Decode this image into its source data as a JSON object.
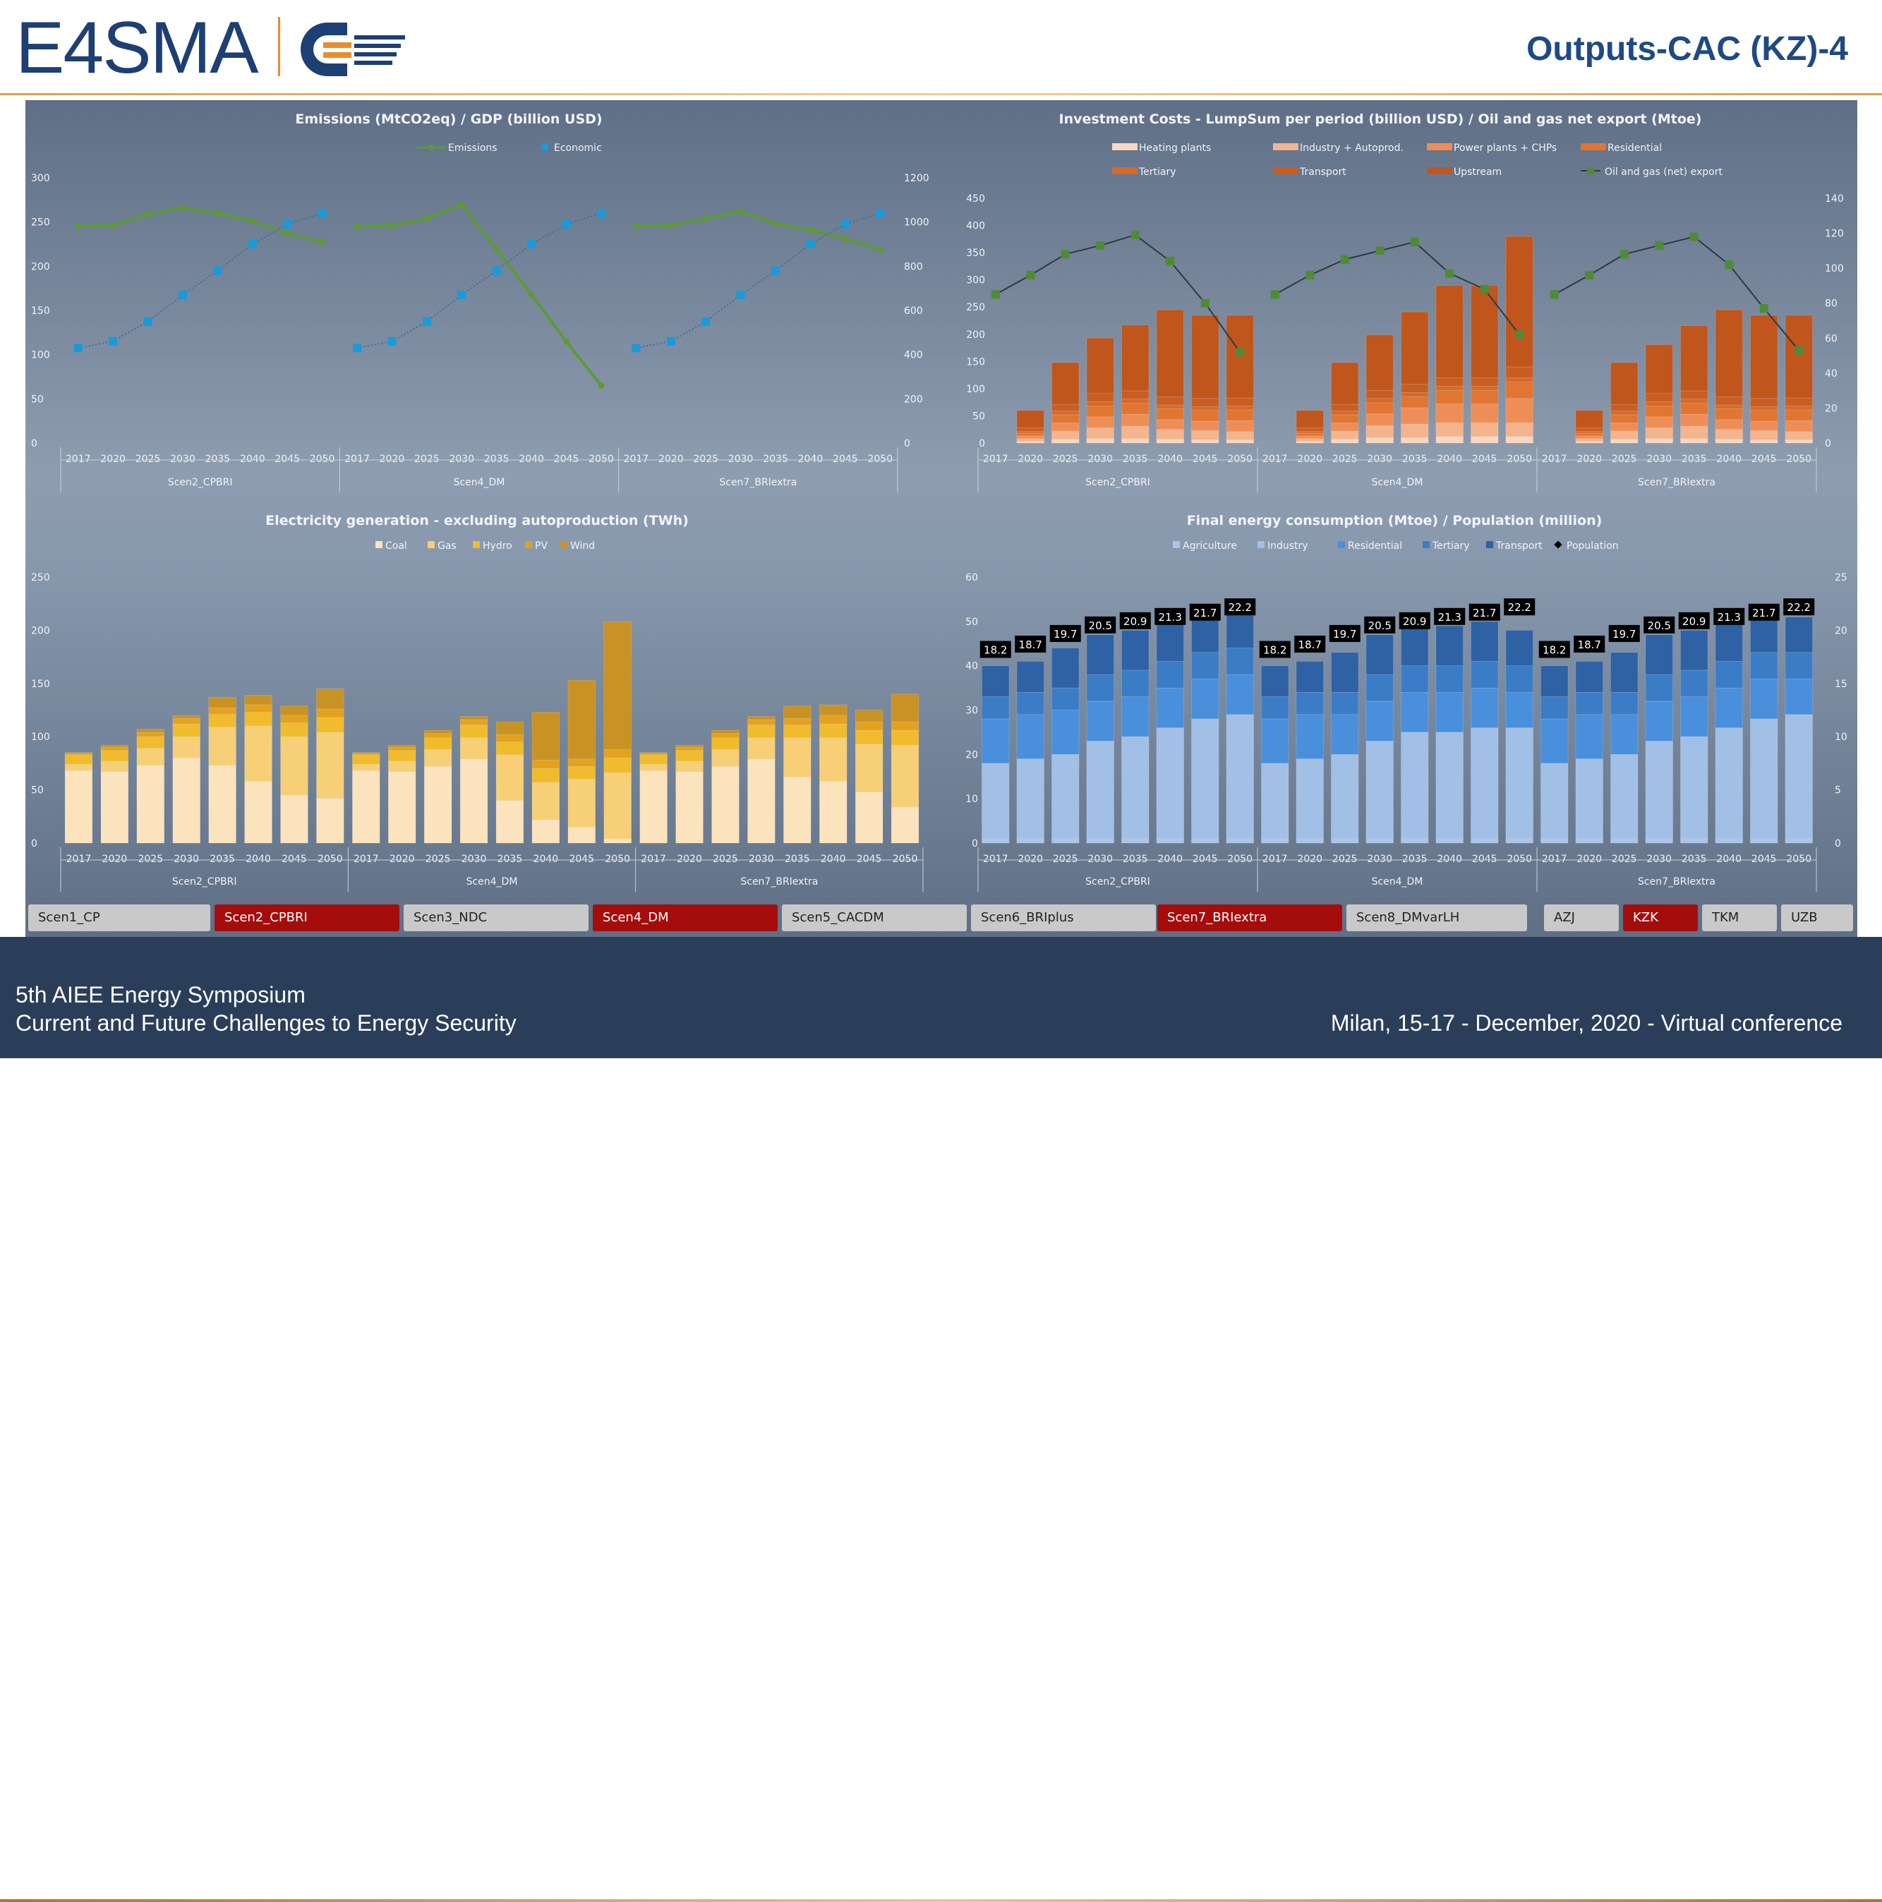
{
  "header": {
    "logo_text": "E4SMA",
    "title": "Outputs-CAC (KZ)-4"
  },
  "footer": {
    "line1": "5th AIEE Energy Symposium",
    "line2": "Current and Future Challenges to Energy Security",
    "right": "Milan, 15-17 - December, 2020 - Virtual conference"
  },
  "tabs": [
    {
      "label": "Scen1_CP",
      "active": false
    },
    {
      "label": "Scen2_CPBRI",
      "active": true
    },
    {
      "label": "Scen3_NDC",
      "active": false
    },
    {
      "label": "Scen4_DM",
      "active": true
    },
    {
      "label": "Scen5_CACDM",
      "active": false
    },
    {
      "label": "Scen6_BRIplus",
      "active": false
    },
    {
      "label": "Scen7_BRIextra",
      "active": true
    },
    {
      "label": "Scen8_DMvarLH",
      "active": false
    },
    {
      "label": "AZJ",
      "active": false
    },
    {
      "label": "KZK",
      "active": true
    },
    {
      "label": "TKM",
      "active": false
    },
    {
      "label": "UZB",
      "active": false
    }
  ],
  "colors": {
    "tab_active": "#a50d0d",
    "tab_inactive": "#c9c9c9",
    "emissions": "#5d9a35",
    "economic": "#1a9ad8",
    "oilgas": "#4f8a35"
  },
  "chart_data": [
    {
      "type": "line",
      "title": "Emissions (MtCO2eq) / GDP (billion USD)",
      "groups": [
        "Scen2_CPBRI",
        "Scen4_DM",
        "Scen7_BRIextra"
      ],
      "years": [
        "2017",
        "2020",
        "2025",
        "2030",
        "2035",
        "2040",
        "2045",
        "2050"
      ],
      "y_left": {
        "ticks": [
          "0",
          "50",
          "100",
          "150",
          "200",
          "250",
          "300"
        ],
        "min": 0,
        "max": 300
      },
      "y_right": {
        "ticks": [
          "0",
          "200",
          "400",
          "600",
          "800",
          "1000",
          "1200"
        ],
        "min": 0,
        "max": 1200
      },
      "legend_position": "top",
      "series": [
        {
          "name": "Emissions",
          "axis": "left",
          "color": "#5d9a35",
          "values": [
            [
              245,
              246,
              259,
              266,
              260,
              251,
              237,
              227
            ],
            [
              245,
              246,
              254,
              270,
              219,
              168,
              115,
              65
            ],
            [
              245,
              246,
              254,
              262,
              248,
              241,
              231,
              219
            ]
          ]
        },
        {
          "name": "Economic",
          "axis": "right",
          "color": "#1a9ad8",
          "values": [
            [
              430,
              460,
              550,
              670,
              780,
              900,
              990,
              1040
            ],
            [
              430,
              460,
              550,
              670,
              780,
              900,
              990,
              1040
            ],
            [
              430,
              460,
              550,
              670,
              780,
              900,
              990,
              1040
            ]
          ]
        }
      ]
    },
    {
      "type": "bar",
      "stacked": true,
      "title": "Investment Costs - LumpSum per period (billion USD) / Oil and gas net export (Mtoe)",
      "groups": [
        "Scen2_CPBRI",
        "Scen4_DM",
        "Scen7_BRIextra"
      ],
      "years": [
        "2017",
        "2020",
        "2025",
        "2030",
        "2035",
        "2040",
        "2045",
        "2050"
      ],
      "y_left": {
        "ticks": [
          "0",
          "50",
          "100",
          "150",
          "200",
          "250",
          "300",
          "350",
          "400",
          "450"
        ],
        "min": 0,
        "max": 450
      },
      "y_right": {
        "ticks": [
          "0",
          "20",
          "40",
          "60",
          "80",
          "100",
          "120",
          "140"
        ],
        "min": 0,
        "max": 140
      },
      "legend_position": "top",
      "series": [
        {
          "name": "Heating plants",
          "color": "#f8d8c0",
          "values": [
            [
              0,
              3,
              7,
              8,
              8,
              7,
              6,
              6
            ],
            [
              0,
              3,
              7,
              10,
              10,
              12,
              12,
              12
            ],
            [
              0,
              3,
              7,
              8,
              8,
              7,
              6,
              6
            ]
          ]
        },
        {
          "name": "Industry + Autoprod.",
          "color": "#f3b48e",
          "values": [
            [
              0,
              5,
              15,
              20,
              23,
              18,
              17,
              15
            ],
            [
              0,
              5,
              15,
              22,
              25,
              25,
              25,
              25
            ],
            [
              0,
              5,
              15,
              20,
              23,
              18,
              17,
              15
            ]
          ]
        },
        {
          "name": "Power plants + CHPs",
          "color": "#ee8e56",
          "values": [
            [
              0,
              5,
              15,
              20,
              22,
              18,
              17,
              20
            ],
            [
              0,
              5,
              15,
              22,
              30,
              35,
              35,
              45
            ],
            [
              0,
              5,
              15,
              20,
              22,
              18,
              17,
              20
            ]
          ]
        },
        {
          "name": "Residential",
          "color": "#e07632",
          "values": [
            [
              0,
              5,
              15,
              20,
              20,
              20,
              20,
              20
            ],
            [
              0,
              5,
              15,
              20,
              20,
              25,
              25,
              30
            ],
            [
              0,
              5,
              15,
              20,
              20,
              20,
              20,
              20
            ]
          ]
        },
        {
          "name": "Tertiary",
          "color": "#d46a2b",
          "values": [
            [
              0,
              3,
              7,
              8,
              8,
              7,
              7,
              7
            ],
            [
              0,
              3,
              7,
              8,
              8,
              8,
              8,
              8
            ],
            [
              0,
              3,
              7,
              8,
              8,
              7,
              7,
              7
            ]
          ]
        },
        {
          "name": "Transport",
          "color": "#c95e22",
          "values": [
            [
              0,
              7,
              12,
              15,
              15,
              15,
              15,
              15
            ],
            [
              0,
              7,
              12,
              15,
              15,
              15,
              15,
              20
            ],
            [
              0,
              7,
              12,
              15,
              15,
              15,
              15,
              15
            ]
          ]
        },
        {
          "name": "Upstream",
          "color": "#c0561c",
          "values": [
            [
              0,
              32,
              77,
              102,
              121,
              160,
              153,
              152
            ],
            [
              0,
              32,
              77,
              102,
              133,
              170,
              170,
              240
            ],
            [
              0,
              32,
              77,
              90,
              120,
              160,
              153,
              152
            ]
          ]
        }
      ],
      "line": {
        "name": "Oil and gas (net) export",
        "axis": "right",
        "color": "#4f8a35",
        "values": [
          [
            85,
            96,
            108,
            113,
            119,
            104,
            80,
            52
          ],
          [
            85,
            96,
            105,
            110,
            115,
            97,
            88,
            62
          ],
          [
            85,
            96,
            108,
            113,
            118,
            102,
            77,
            53
          ]
        ]
      }
    },
    {
      "type": "bar",
      "stacked": true,
      "title": "Electricity generation -  excluding autoproduction (TWh)",
      "groups": [
        "Scen2_CPBRI",
        "Scen4_DM",
        "Scen7_BRIextra"
      ],
      "years": [
        "2017",
        "2020",
        "2025",
        "2030",
        "2035",
        "2040",
        "2045",
        "2050"
      ],
      "y_left": {
        "ticks": [
          "0",
          "50",
          "100",
          "150",
          "200",
          "250"
        ],
        "min": 0,
        "max": 250
      },
      "legend_position": "top",
      "series": [
        {
          "name": "Coal",
          "color": "#fae3bd",
          "values": [
            [
              68,
              67,
              73,
              80,
              73,
              58,
              45,
              42
            ],
            [
              68,
              67,
              72,
              79,
              40,
              22,
              15,
              4
            ],
            [
              68,
              67,
              72,
              79,
              62,
              58,
              48,
              34
            ]
          ]
        },
        {
          "name": "Gas",
          "color": "#f6cf77",
          "values": [
            [
              6,
              10,
              16,
              20,
              36,
              52,
              55,
              62
            ],
            [
              6,
              10,
              16,
              20,
              43,
              35,
              45,
              62
            ],
            [
              6,
              10,
              16,
              20,
              37,
              41,
              45,
              58
            ]
          ]
        },
        {
          "name": "Hydro",
          "color": "#f1bb2e",
          "values": [
            [
              9,
              10,
              11,
              12,
              12,
              13,
              13,
              14
            ],
            [
              9,
              10,
              11,
              12,
              12,
              13,
              12,
              14
            ],
            [
              9,
              10,
              11,
              12,
              12,
              13,
              13,
              14
            ]
          ]
        },
        {
          "name": "PV",
          "color": "#e3a21e",
          "values": [
            [
              2,
              3,
              4,
              5,
              6,
              7,
              7,
              8
            ],
            [
              2,
              3,
              4,
              5,
              7,
              8,
              7,
              8
            ],
            [
              2,
              3,
              4,
              5,
              6,
              8,
              8,
              8
            ]
          ]
        },
        {
          "name": "Wind",
          "color": "#c89225",
          "values": [
            [
              0,
              2,
              3,
              3,
              10,
              9,
              9,
              19
            ],
            [
              0,
              2,
              3,
              3,
              12,
              45,
              74,
              120
            ],
            [
              0,
              2,
              3,
              3,
              12,
              10,
              11,
              26
            ]
          ]
        }
      ]
    },
    {
      "type": "bar",
      "stacked": true,
      "title": "Final energy consumption (Mtoe) / Population (million)",
      "groups": [
        "Scen2_CPBRI",
        "Scen4_DM",
        "Scen7_BRIextra"
      ],
      "years": [
        "2017",
        "2020",
        "2025",
        "2030",
        "2035",
        "2040",
        "2045",
        "2050"
      ],
      "y_left": {
        "ticks": [
          "0",
          "10",
          "20",
          "30",
          "40",
          "50",
          "60"
        ],
        "min": 0,
        "max": 60
      },
      "y_right": {
        "ticks": [
          "0",
          "5",
          "10",
          "15",
          "20",
          "25"
        ],
        "min": 0,
        "max": 25
      },
      "legend_position": "top",
      "series": [
        {
          "name": "Agriculture",
          "color": "#a9c6ea",
          "values": [
            [
              1,
              1,
              1,
              1,
              1,
              1,
              1,
              1
            ],
            [
              1,
              1,
              1,
              1,
              1,
              1,
              1,
              1
            ],
            [
              1,
              1,
              1,
              1,
              1,
              1,
              1,
              1
            ]
          ]
        },
        {
          "name": "Industry",
          "color": "#a2bfe5",
          "values": [
            [
              17,
              18,
              19,
              22,
              23,
              25,
              27,
              28
            ],
            [
              17,
              18,
              19,
              22,
              24,
              24,
              25,
              25
            ],
            [
              17,
              18,
              19,
              22,
              23,
              25,
              27,
              28
            ]
          ]
        },
        {
          "name": "Residential",
          "color": "#4a8fdc",
          "values": [
            [
              10,
              10,
              10,
              9,
              9,
              9,
              9,
              9
            ],
            [
              10,
              10,
              9,
              9,
              9,
              9,
              9,
              8
            ],
            [
              10,
              10,
              9,
              9,
              9,
              9,
              9,
              8
            ]
          ]
        },
        {
          "name": "Tertiary",
          "color": "#3b7cc6",
          "values": [
            [
              5,
              5,
              5,
              6,
              6,
              6,
              6,
              6
            ],
            [
              5,
              5,
              5,
              6,
              6,
              6,
              6,
              6
            ],
            [
              5,
              5,
              5,
              6,
              6,
              6,
              6,
              6
            ]
          ]
        },
        {
          "name": "Transport",
          "color": "#2e62a5",
          "values": [
            [
              7,
              7,
              9,
              9,
              9,
              9,
              9,
              8
            ],
            [
              7,
              7,
              9,
              9,
              9,
              9,
              9,
              8
            ],
            [
              7,
              7,
              9,
              9,
              9,
              9,
              9,
              8
            ]
          ]
        }
      ],
      "line": {
        "name": "Population",
        "axis": "right",
        "values": [
          [
            18.2,
            18.7,
            19.7,
            20.5,
            20.9,
            21.3,
            21.7,
            22.2
          ],
          [
            18.2,
            18.7,
            19.7,
            20.5,
            20.9,
            21.3,
            21.7,
            22.2
          ],
          [
            18.2,
            18.7,
            19.7,
            20.5,
            20.9,
            21.3,
            21.7,
            22.2
          ]
        ]
      }
    }
  ]
}
